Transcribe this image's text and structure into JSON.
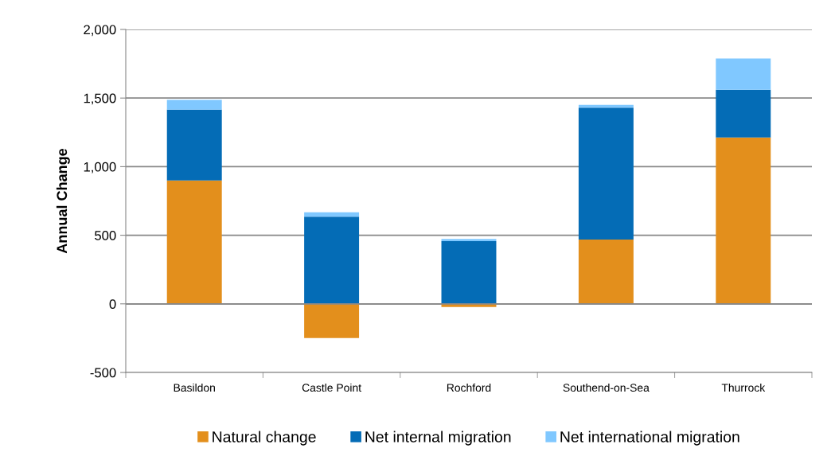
{
  "chart_data": {
    "type": "bar",
    "stacked": true,
    "ylabel": "Annual Change",
    "categories": [
      "Basildon",
      "Castle Point",
      "Rochford",
      "Southend-on-Sea",
      "Thurrock"
    ],
    "series": [
      {
        "name": "Natural change",
        "color": "#e38f1c",
        "values": [
          900,
          -249,
          -23,
          469,
          1212
        ]
      },
      {
        "name": "Net internal migration",
        "color": "#046cb6",
        "values": [
          515,
          635,
          457,
          961,
          349
        ]
      },
      {
        "name": "Net international migration",
        "color": "#80c8ff",
        "values": [
          71,
          33,
          16,
          21,
          228
        ]
      }
    ],
    "ylim": [
      -500,
      2000
    ],
    "yticks": [
      {
        "value": -500,
        "label": "-500"
      },
      {
        "value": 0,
        "label": "0"
      },
      {
        "value": 500,
        "label": "500"
      },
      {
        "value": 1000,
        "label": "1,000"
      },
      {
        "value": 1500,
        "label": "1,500"
      },
      {
        "value": 2000,
        "label": "2,000"
      }
    ],
    "grid": "y",
    "legend": "bottom"
  }
}
